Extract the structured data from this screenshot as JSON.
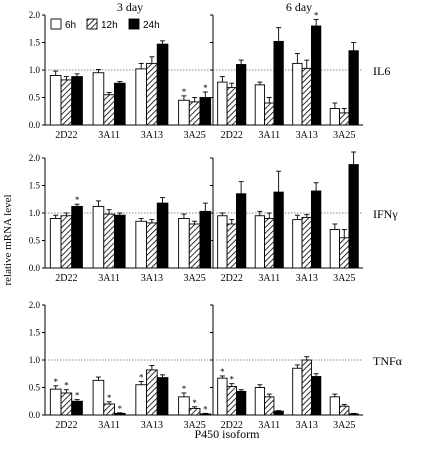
{
  "figure": {
    "col_titles": [
      "3 day",
      "6 day"
    ],
    "ylabel": "relative mRNA level",
    "xlabel": "P450 isoform",
    "row_labels": [
      "IL6",
      "IFNγ",
      "TNFα"
    ]
  },
  "colors": {
    "bar_6h": "#ffffff",
    "bar_24h": "#000000",
    "reference_line": "#888888"
  },
  "chart_data": [
    {
      "type": "bar",
      "title": "3 day",
      "row_label": "IL6",
      "categories": [
        "2D22",
        "3A11",
        "3A13",
        "3A25"
      ],
      "ylim": [
        0,
        2
      ],
      "yticks": [
        0.0,
        0.5,
        1.0,
        1.5,
        2.0
      ],
      "reference_line": 1.0,
      "grid": false,
      "legend": {
        "placement": "top-left",
        "entries": [
          "6h",
          "12h",
          "24h"
        ]
      },
      "series": [
        {
          "name": "6h",
          "values": [
            0.9,
            0.95,
            1.02,
            0.45
          ],
          "errors": [
            0.08,
            0.06,
            0.1,
            0.08
          ],
          "star": [
            false,
            false,
            false,
            true
          ]
        },
        {
          "name": "12h",
          "values": [
            0.82,
            0.55,
            1.12,
            0.42
          ],
          "errors": [
            0.06,
            0.04,
            0.12,
            0.08
          ],
          "star": [
            false,
            false,
            false,
            false
          ]
        },
        {
          "name": "24h",
          "values": [
            0.88,
            0.76,
            1.47,
            0.5
          ],
          "errors": [
            0.05,
            0.03,
            0.06,
            0.1
          ],
          "star": [
            false,
            false,
            false,
            true
          ]
        }
      ]
    },
    {
      "type": "bar",
      "title": "6 day",
      "row_label": "IL6",
      "categories": [
        "2D22",
        "3A11",
        "3A13",
        "3A25"
      ],
      "ylim": [
        0,
        2
      ],
      "yticks": [
        0.0,
        0.5,
        1.0,
        1.5,
        2.0
      ],
      "reference_line": 1.0,
      "grid": false,
      "series": [
        {
          "name": "6h",
          "values": [
            0.78,
            0.73,
            1.12,
            0.3
          ],
          "errors": [
            0.1,
            0.05,
            0.18,
            0.1
          ],
          "star": [
            false,
            false,
            false,
            false
          ]
        },
        {
          "name": "12h",
          "values": [
            0.68,
            0.4,
            1.03,
            0.22
          ],
          "errors": [
            0.08,
            0.1,
            0.15,
            0.08
          ],
          "star": [
            false,
            false,
            false,
            false
          ]
        },
        {
          "name": "24h",
          "values": [
            1.1,
            1.52,
            1.8,
            1.35
          ],
          "errors": [
            0.08,
            0.25,
            0.12,
            0.15
          ],
          "star": [
            false,
            false,
            true,
            false
          ]
        }
      ]
    },
    {
      "type": "bar",
      "row_label": "IFNγ",
      "categories": [
        "2D22",
        "3A11",
        "3A13",
        "3A25"
      ],
      "ylim": [
        0,
        2
      ],
      "yticks": [
        0.0,
        0.5,
        1.0,
        1.5,
        2.0
      ],
      "reference_line": 1.0,
      "grid": false,
      "series": [
        {
          "name": "6h",
          "values": [
            0.9,
            1.12,
            0.85,
            0.9
          ],
          "errors": [
            0.06,
            0.1,
            0.05,
            0.08
          ],
          "star": [
            false,
            false,
            false,
            false
          ]
        },
        {
          "name": "12h",
          "values": [
            0.95,
            0.98,
            0.82,
            0.8
          ],
          "errors": [
            0.05,
            0.08,
            0.06,
            0.05
          ],
          "star": [
            false,
            false,
            false,
            false
          ]
        },
        {
          "name": "24h",
          "values": [
            1.12,
            0.96,
            1.18,
            1.03
          ],
          "errors": [
            0.04,
            0.04,
            0.1,
            0.15
          ],
          "star": [
            true,
            false,
            false,
            false
          ]
        }
      ]
    },
    {
      "type": "bar",
      "row_label": "IFNγ",
      "categories": [
        "2D22",
        "3A11",
        "3A13",
        "3A25"
      ],
      "ylim": [
        0,
        2
      ],
      "yticks": [
        0.0,
        0.5,
        1.0,
        1.5,
        2.0
      ],
      "reference_line": 1.0,
      "grid": false,
      "series": [
        {
          "name": "6h",
          "values": [
            0.95,
            0.95,
            0.88,
            0.7
          ],
          "errors": [
            0.05,
            0.08,
            0.08,
            0.1
          ],
          "star": [
            false,
            false,
            false,
            false
          ]
        },
        {
          "name": "12h",
          "values": [
            0.8,
            0.9,
            0.92,
            0.55
          ],
          "errors": [
            0.08,
            0.1,
            0.05,
            0.15
          ],
          "star": [
            false,
            false,
            false,
            false
          ]
        },
        {
          "name": "24h",
          "values": [
            1.35,
            1.38,
            1.4,
            1.88
          ],
          "errors": [
            0.22,
            0.38,
            0.15,
            0.6
          ],
          "star": [
            false,
            false,
            false,
            false
          ]
        }
      ]
    },
    {
      "type": "bar",
      "row_label": "TNFα",
      "categories": [
        "2D22",
        "3A11",
        "3A13",
        "3A25"
      ],
      "ylim": [
        0,
        2
      ],
      "yticks": [
        0.0,
        0.5,
        1.0,
        1.5,
        2.0
      ],
      "reference_line": 1.0,
      "grid": false,
      "series": [
        {
          "name": "6h",
          "values": [
            0.47,
            0.63,
            0.55,
            0.33
          ],
          "errors": [
            0.06,
            0.06,
            0.06,
            0.07
          ],
          "star": [
            true,
            false,
            true,
            true
          ]
        },
        {
          "name": "12h",
          "values": [
            0.4,
            0.2,
            0.82,
            0.12
          ],
          "errors": [
            0.06,
            0.04,
            0.08,
            0.03
          ],
          "star": [
            true,
            true,
            false,
            true
          ]
        },
        {
          "name": "24h",
          "values": [
            0.25,
            0.03,
            0.68,
            0.02
          ],
          "errors": [
            0.03,
            0.01,
            0.05,
            0.01
          ],
          "star": [
            true,
            true,
            false,
            true
          ]
        }
      ]
    },
    {
      "type": "bar",
      "row_label": "TNFα",
      "categories": [
        "2D22",
        "3A11",
        "3A13",
        "3A25"
      ],
      "ylim": [
        0,
        2
      ],
      "yticks": [
        0.0,
        0.5,
        1.0,
        1.5,
        2.0
      ],
      "reference_line": 1.0,
      "grid": false,
      "series": [
        {
          "name": "6h",
          "values": [
            0.67,
            0.5,
            0.85,
            0.33
          ],
          "errors": [
            0.04,
            0.05,
            0.06,
            0.05
          ],
          "star": [
            true,
            false,
            false,
            false
          ]
        },
        {
          "name": "12h",
          "values": [
            0.52,
            0.33,
            1.0,
            0.16
          ],
          "errors": [
            0.05,
            0.05,
            0.06,
            0.03
          ],
          "star": [
            true,
            false,
            false,
            false
          ]
        },
        {
          "name": "24h",
          "values": [
            0.43,
            0.07,
            0.7,
            0.02
          ],
          "errors": [
            0.03,
            0.01,
            0.05,
            0.01
          ],
          "star": [
            false,
            false,
            false,
            false
          ]
        }
      ]
    }
  ]
}
